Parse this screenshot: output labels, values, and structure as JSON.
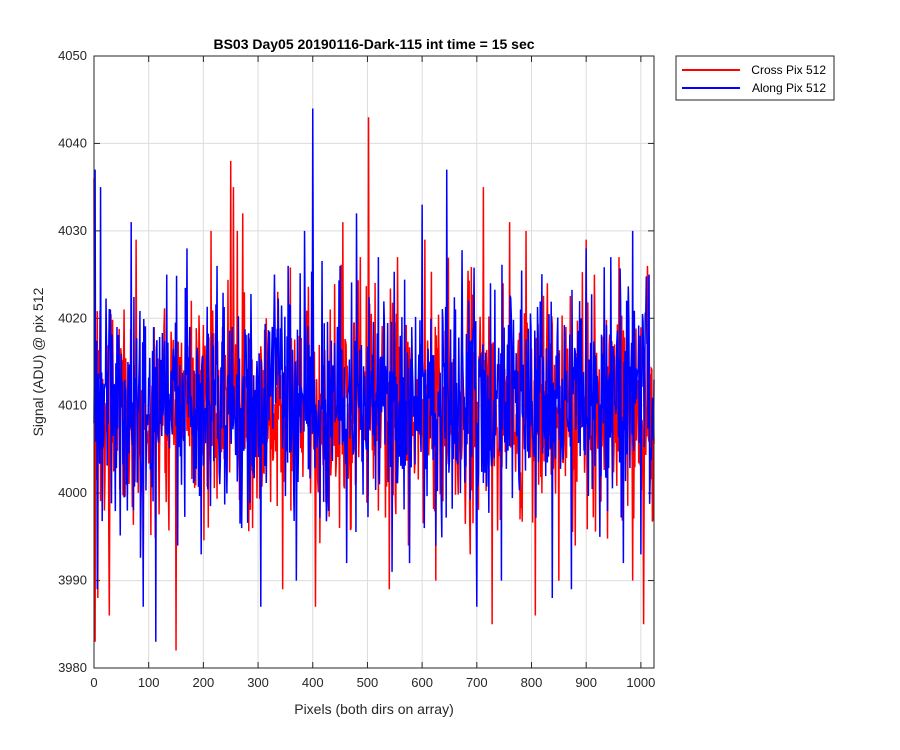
{
  "chart_data": {
    "type": "line",
    "title": "BS03 Day05 20190116-Dark-115 int time = 15 sec",
    "xlabel": "Pixels (both dirs on array)",
    "ylabel": "Signal (ADU) @ pix 512",
    "xlim": [
      0,
      1024
    ],
    "ylim": [
      3980,
      4050
    ],
    "xticks": [
      0,
      100,
      200,
      300,
      400,
      500,
      600,
      700,
      800,
      900,
      1000
    ],
    "yticks": [
      3980,
      3990,
      4000,
      4010,
      4020,
      4030,
      4040,
      4050
    ],
    "grid": true,
    "legend_position": "outside-top-right",
    "series": [
      {
        "name": "Cross Pix 512",
        "color": "#ff0000",
        "mean": 4009.5,
        "x": [
          0,
          2,
          7,
          19,
          28,
          55,
          77,
          90,
          110,
          150,
          178,
          214,
          235,
          250,
          255,
          262,
          272,
          290,
          315,
          345,
          375,
          405,
          432,
          455,
          470,
          487,
          502,
          520,
          540,
          555,
          575,
          605,
          625,
          660,
          688,
          712,
          728,
          748,
          760,
          779,
          790,
          807,
          829,
          850,
          863,
          880,
          900,
          915,
          936,
          960,
          985,
          1005,
          1012,
          1022
        ],
        "y": [
          4036,
          3983,
          3988,
          3998,
          3986,
          4021,
          4029,
          3989,
          4019,
          3982,
          4022,
          4030,
          4019,
          4038,
          4035,
          4030,
          4032,
          3996,
          4020,
          3989,
          4018,
          3987,
          4021,
          4031,
          3996,
          4027,
          4043,
          3998,
          3989,
          4027,
          3994,
          4029,
          3990,
          4011,
          3993,
          4035,
          3985,
          4024,
          4031,
          3997,
          4030,
          3986,
          4024,
          3990,
          4019,
          3994,
          4029,
          4025,
          4010,
          4027,
          3990,
          3985,
          4026,
          3997
        ]
      },
      {
        "name": "Along Pix 512",
        "color": "#0000ff",
        "mean": 4010.5,
        "x": [
          0,
          2,
          6,
          12,
          30,
          42,
          61,
          68,
          90,
          113,
          133,
          153,
          170,
          196,
          225,
          253,
          270,
          282,
          305,
          330,
          355,
          370,
          385,
          400,
          420,
          450,
          462,
          480,
          497,
          520,
          545,
          560,
          577,
          600,
          625,
          645,
          670,
          685,
          700,
          725,
          745,
          780,
          795,
          812,
          838,
          850,
          873,
          900,
          925,
          945,
          968,
          985,
          1000,
          1015,
          1023
        ],
        "y": [
          4008,
          4037,
          3989,
          4035,
          4021,
          4019,
          3998,
          4031,
          3987,
          3983,
          4025,
          3994,
          4028,
          3993,
          4026,
          4019,
          3996,
          4018,
          3987,
          4025,
          4026,
          3990,
          4030,
          4044,
          3999,
          4026,
          3992,
          4032,
          4006,
          4027,
          3991,
          4018,
          3992,
          4033,
          3994,
          4037,
          4000,
          4022,
          3987,
          4024,
          3990,
          4021,
          4004,
          4018,
          3988,
          4016,
          3989,
          4028,
          3995,
          4027,
          3992,
          4030,
          3993,
          4025,
          4006
        ]
      }
    ]
  }
}
